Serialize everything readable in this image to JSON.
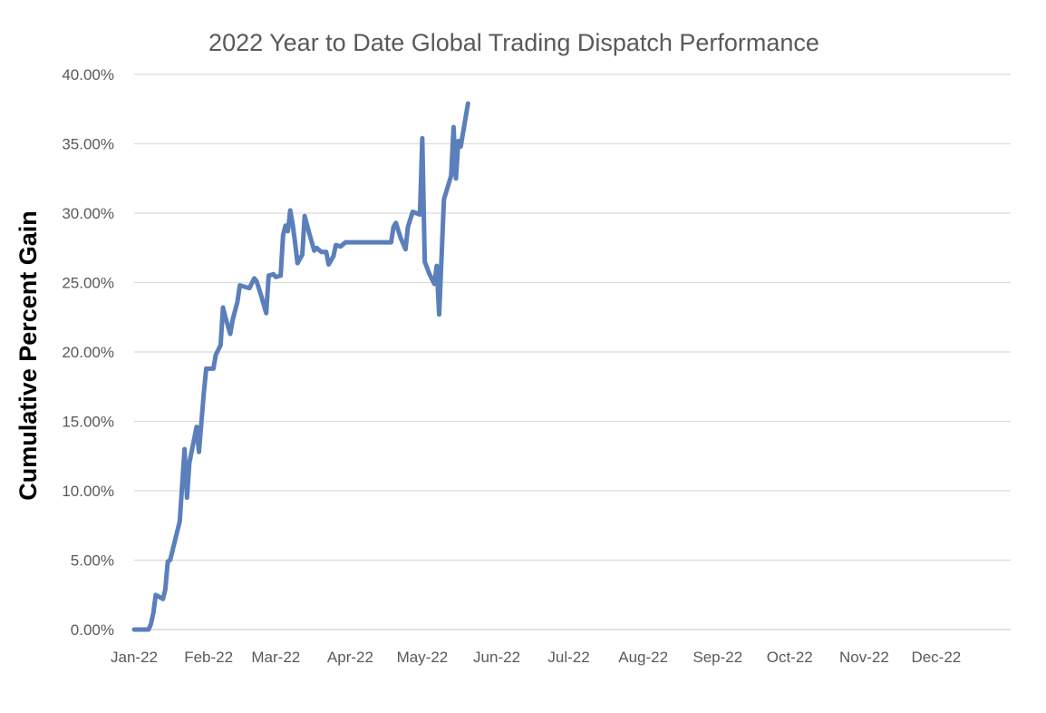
{
  "chart_data": {
    "type": "line",
    "title": "2022 Year to Date Global Trading Dispatch Performance",
    "xlabel": "",
    "ylabel": "Cumulative Percent Gain",
    "x_axis_type": "date",
    "xlim": [
      "2022-01-01",
      "2022-12-31"
    ],
    "ylim": [
      0,
      0.4
    ],
    "y_tick_format": "percent_2dp",
    "y_ticks": [
      "0.00%",
      "5.00%",
      "10.00%",
      "15.00%",
      "20.00%",
      "25.00%",
      "30.00%",
      "35.00%",
      "40.00%"
    ],
    "x_ticks": [
      {
        "date": "2022-01-01",
        "label": "Jan-22"
      },
      {
        "date": "2022-02-01",
        "label": "Feb-22"
      },
      {
        "date": "2022-03-01",
        "label": "Mar-22"
      },
      {
        "date": "2022-04-01",
        "label": "Apr-22"
      },
      {
        "date": "2022-05-01",
        "label": "May-22"
      },
      {
        "date": "2022-06-01",
        "label": "Jun-22"
      },
      {
        "date": "2022-07-01",
        "label": "Jul-22"
      },
      {
        "date": "2022-08-01",
        "label": "Aug-22"
      },
      {
        "date": "2022-09-01",
        "label": "Sep-22"
      },
      {
        "date": "2022-10-01",
        "label": "Oct-22"
      },
      {
        "date": "2022-11-01",
        "label": "Nov-22"
      },
      {
        "date": "2022-12-01",
        "label": "Dec-22"
      }
    ],
    "grid": "horizontal",
    "legend": "none",
    "series": [
      {
        "color": "#5b7fbb",
        "points": [
          [
            "2022-01-01",
            0.0
          ],
          [
            "2022-01-07",
            0.0
          ],
          [
            "2022-01-08",
            0.004
          ],
          [
            "2022-01-09",
            0.012
          ],
          [
            "2022-01-10",
            0.025
          ],
          [
            "2022-01-13",
            0.022
          ],
          [
            "2022-01-14",
            0.029
          ],
          [
            "2022-01-15",
            0.049
          ],
          [
            "2022-01-16",
            0.05
          ],
          [
            "2022-01-20",
            0.078
          ],
          [
            "2022-01-22",
            0.13
          ],
          [
            "2022-01-23",
            0.095
          ],
          [
            "2022-01-24",
            0.12
          ],
          [
            "2022-01-27",
            0.146
          ],
          [
            "2022-01-28",
            0.128
          ],
          [
            "2022-01-30",
            0.17
          ],
          [
            "2022-01-31",
            0.188
          ],
          [
            "2022-02-03",
            0.188
          ],
          [
            "2022-02-04",
            0.198
          ],
          [
            "2022-02-06",
            0.205
          ],
          [
            "2022-02-07",
            0.232
          ],
          [
            "2022-02-08",
            0.225
          ],
          [
            "2022-02-10",
            0.213
          ],
          [
            "2022-02-11",
            0.223
          ],
          [
            "2022-02-13",
            0.236
          ],
          [
            "2022-02-14",
            0.248
          ],
          [
            "2022-02-18",
            0.246
          ],
          [
            "2022-02-20",
            0.253
          ],
          [
            "2022-02-21",
            0.251
          ],
          [
            "2022-02-23",
            0.24
          ],
          [
            "2022-02-25",
            0.228
          ],
          [
            "2022-02-26",
            0.255
          ],
          [
            "2022-02-28",
            0.256
          ],
          [
            "2022-03-01",
            0.254
          ],
          [
            "2022-03-03",
            0.255
          ],
          [
            "2022-03-04",
            0.284
          ],
          [
            "2022-03-05",
            0.291
          ],
          [
            "2022-03-06",
            0.287
          ],
          [
            "2022-03-07",
            0.302
          ],
          [
            "2022-03-08",
            0.292
          ],
          [
            "2022-03-09",
            0.279
          ],
          [
            "2022-03-10",
            0.264
          ],
          [
            "2022-03-12",
            0.27
          ],
          [
            "2022-03-13",
            0.298
          ],
          [
            "2022-03-15",
            0.285
          ],
          [
            "2022-03-17",
            0.273
          ],
          [
            "2022-03-18",
            0.275
          ],
          [
            "2022-03-20",
            0.272
          ],
          [
            "2022-03-22",
            0.272
          ],
          [
            "2022-03-23",
            0.263
          ],
          [
            "2022-03-25",
            0.269
          ],
          [
            "2022-03-26",
            0.277
          ],
          [
            "2022-03-28",
            0.276
          ],
          [
            "2022-03-30",
            0.279
          ],
          [
            "2022-04-01",
            0.279
          ],
          [
            "2022-04-18",
            0.279
          ],
          [
            "2022-04-19",
            0.29
          ],
          [
            "2022-04-20",
            0.293
          ],
          [
            "2022-04-22",
            0.282
          ],
          [
            "2022-04-24",
            0.274
          ],
          [
            "2022-04-25",
            0.29
          ],
          [
            "2022-04-27",
            0.301
          ],
          [
            "2022-04-30",
            0.299
          ],
          [
            "2022-05-01",
            0.354
          ],
          [
            "2022-05-02",
            0.265
          ],
          [
            "2022-05-04",
            0.256
          ],
          [
            "2022-05-06",
            0.249
          ],
          [
            "2022-05-07",
            0.262
          ],
          [
            "2022-05-08",
            0.227
          ],
          [
            "2022-05-10",
            0.31
          ],
          [
            "2022-05-13",
            0.327
          ],
          [
            "2022-05-14",
            0.362
          ],
          [
            "2022-05-15",
            0.325
          ],
          [
            "2022-05-16",
            0.352
          ],
          [
            "2022-05-17",
            0.348
          ],
          [
            "2022-05-20",
            0.379
          ]
        ]
      }
    ]
  }
}
